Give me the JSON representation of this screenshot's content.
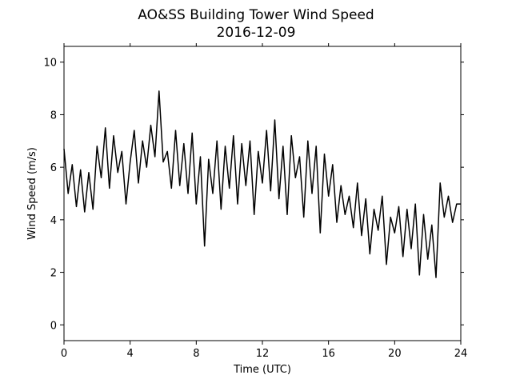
{
  "chart_data": {
    "type": "line",
    "title": "AO&SS Building Tower Wind Speed",
    "subtitle": "2016-12-09",
    "xlabel": "Time (UTC)",
    "ylabel": "Wind Speed (m/s)",
    "xlim": [
      0,
      24
    ],
    "ylim": [
      -0.6,
      10.6
    ],
    "xticks": [
      0,
      4,
      8,
      12,
      16,
      20,
      24
    ],
    "yticks": [
      0,
      2,
      4,
      6,
      8,
      10
    ],
    "grid": false,
    "line_color": "#000000",
    "series": [
      {
        "x": [
          0.0,
          0.25,
          0.5,
          0.75,
          1.0,
          1.25,
          1.5,
          1.75,
          2.0,
          2.25,
          2.5,
          2.75,
          3.0,
          3.25,
          3.5,
          3.75,
          4.0,
          4.25,
          4.5,
          4.75,
          5.0,
          5.25,
          5.5,
          5.75,
          6.0,
          6.25,
          6.5,
          6.75,
          7.0,
          7.25,
          7.5,
          7.75,
          8.0,
          8.25,
          8.5,
          8.75,
          9.0,
          9.25,
          9.5,
          9.75,
          10.0,
          10.25,
          10.5,
          10.75,
          11.0,
          11.25,
          11.5,
          11.75,
          12.0,
          12.25,
          12.5,
          12.75,
          13.0,
          13.25,
          13.5,
          13.75,
          14.0,
          14.25,
          14.5,
          14.75,
          15.0,
          15.25,
          15.5,
          15.75,
          16.0,
          16.25,
          16.5,
          16.75,
          17.0,
          17.25,
          17.5,
          17.75,
          18.0,
          18.25,
          18.5,
          18.75,
          19.0,
          19.25,
          19.5,
          19.75,
          20.0,
          20.25,
          20.5,
          20.75,
          21.0,
          21.25,
          21.5,
          21.75,
          22.0,
          22.25,
          22.5,
          22.75,
          23.0,
          23.25,
          23.5,
          23.75,
          24.0
        ],
        "values": [
          6.7,
          5.0,
          6.1,
          4.5,
          5.9,
          4.3,
          5.8,
          4.4,
          6.8,
          5.6,
          7.5,
          5.2,
          7.2,
          5.8,
          6.6,
          4.6,
          6.2,
          7.4,
          5.4,
          7.0,
          6.0,
          7.6,
          6.4,
          8.9,
          6.2,
          6.6,
          5.2,
          7.4,
          5.3,
          6.9,
          5.0,
          7.3,
          4.6,
          6.4,
          3.0,
          6.3,
          5.0,
          7.0,
          4.4,
          6.8,
          5.2,
          7.2,
          4.6,
          6.9,
          5.3,
          7.0,
          4.2,
          6.6,
          5.4,
          7.4,
          5.1,
          7.8,
          4.8,
          6.8,
          4.2,
          7.2,
          5.6,
          6.4,
          4.1,
          7.0,
          5.0,
          6.8,
          3.5,
          6.5,
          4.9,
          6.1,
          3.9,
          5.3,
          4.2,
          4.9,
          3.7,
          5.4,
          3.4,
          4.8,
          2.7,
          4.4,
          3.6,
          4.9,
          2.3,
          4.1,
          3.5,
          4.5,
          2.6,
          4.4,
          2.9,
          4.6,
          1.9,
          4.2,
          2.5,
          3.8,
          1.8,
          5.4,
          4.1,
          4.9,
          3.9,
          4.6,
          4.6
        ]
      }
    ]
  }
}
